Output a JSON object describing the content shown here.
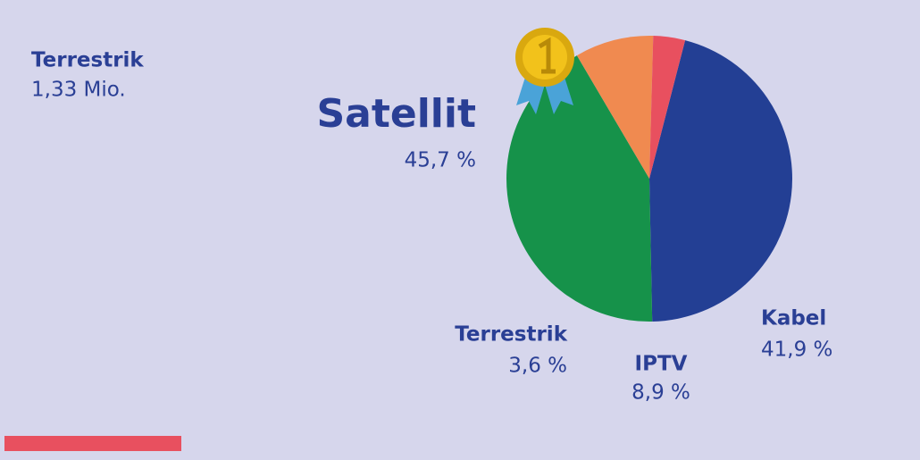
{
  "chart_data": {
    "type": "pie",
    "annotation": {
      "label": "Terrestrik",
      "text": "1,33 Mio."
    },
    "categories": [
      "Satellit",
      "Kabel",
      "IPTV",
      "Terrestrik"
    ],
    "values": [
      45.7,
      41.9,
      8.9,
      3.6
    ],
    "value_labels": [
      "45,7 %",
      "41,9 %",
      "8,9 %",
      "3,6 %"
    ],
    "colors": [
      "#233f94",
      "#16924a",
      "#f08a50",
      "#e8505f"
    ]
  }
}
